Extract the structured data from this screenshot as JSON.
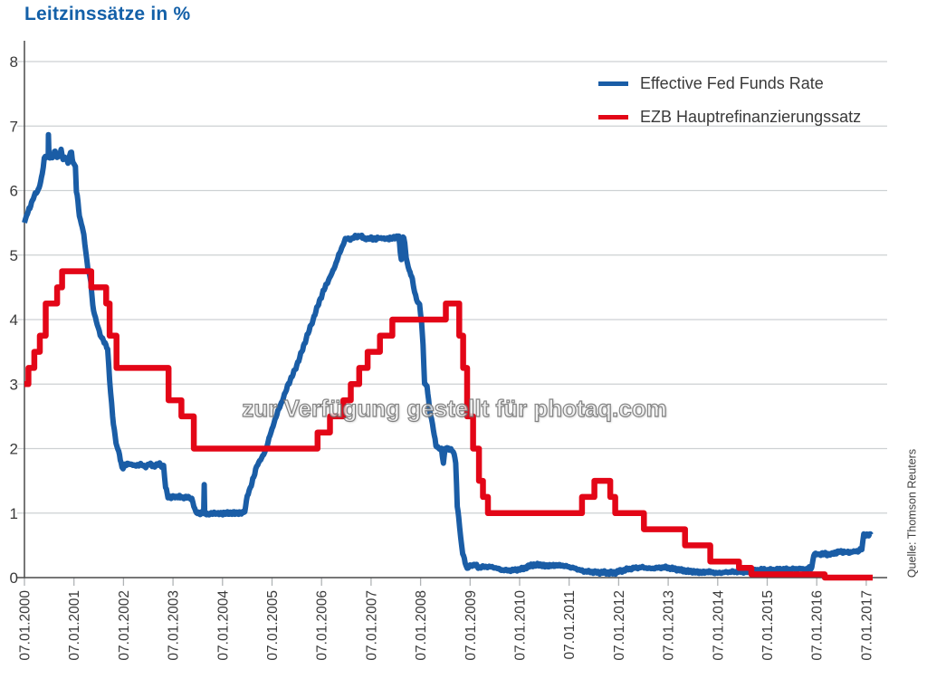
{
  "header": {
    "title": "Leitzinssätze in %"
  },
  "watermark": {
    "text": "zur Verfügung gestellt für photaq.com"
  },
  "source": {
    "text": "Quelle: Thomson Reuters"
  },
  "colors": {
    "title": "#1360a8",
    "fed_line": "#1a5da6",
    "ezb_line": "#e30617",
    "axis_text": "#3a3a3a",
    "grid": "#cdd1d3",
    "axis_line": "#4a4a4a",
    "tick": "#b0b4b6"
  },
  "chart_data": {
    "type": "line",
    "title": "Leitzinssätze in %",
    "xlabel": "",
    "ylabel": "",
    "xlim": [
      2000.02,
      2017.15
    ],
    "ylim": [
      0,
      8.4
    ],
    "grid": "horizontal",
    "legend_position": "top-right",
    "y_ticks": [
      0,
      1,
      2,
      3,
      4,
      5,
      6,
      7,
      8
    ],
    "x_tick_labels": [
      "07.01.2000",
      "07.01.2001",
      "07.01.2002",
      "07.01.2003",
      "07.01.2004",
      "07.01.2005",
      "07.01.2006",
      "07.01.2007",
      "07.01.2008",
      "07.01.2009",
      "07.01.2010",
      "07.01.2011",
      "07.01.2012",
      "07.01.2013",
      "07.01.2014",
      "07.01.2015",
      "07.01.2016",
      "07.01.2017"
    ],
    "series": [
      {
        "name": "Effective Fed Funds Rate",
        "color": "#1a5da6",
        "style": "noisy-line",
        "noise_amplitude": 0.028,
        "points": [
          [
            2000.02,
            5.5
          ],
          [
            2000.08,
            5.65
          ],
          [
            2000.13,
            5.73
          ],
          [
            2000.18,
            5.85
          ],
          [
            2000.24,
            5.95
          ],
          [
            2000.3,
            6.0
          ],
          [
            2000.38,
            6.25
          ],
          [
            2000.42,
            6.5
          ],
          [
            2000.48,
            6.53
          ],
          [
            2000.5,
            6.54
          ],
          [
            2000.505,
            6.87
          ],
          [
            2000.515,
            6.55
          ],
          [
            2000.55,
            6.5
          ],
          [
            2000.6,
            6.53
          ],
          [
            2000.64,
            6.62
          ],
          [
            2000.68,
            6.5
          ],
          [
            2000.73,
            6.55
          ],
          [
            2000.76,
            6.62
          ],
          [
            2000.8,
            6.5
          ],
          [
            2000.85,
            6.52
          ],
          [
            2000.9,
            6.42
          ],
          [
            2000.93,
            6.55
          ],
          [
            2000.97,
            6.6
          ],
          [
            2001.0,
            6.42
          ],
          [
            2001.05,
            6.38
          ],
          [
            2001.07,
            5.98
          ],
          [
            2001.1,
            5.85
          ],
          [
            2001.13,
            5.6
          ],
          [
            2001.17,
            5.49
          ],
          [
            2001.22,
            5.31
          ],
          [
            2001.3,
            4.8
          ],
          [
            2001.36,
            4.6
          ],
          [
            2001.4,
            4.21
          ],
          [
            2001.47,
            3.97
          ],
          [
            2001.55,
            3.77
          ],
          [
            2001.63,
            3.65
          ],
          [
            2001.7,
            3.55
          ],
          [
            2001.74,
            3.07
          ],
          [
            2001.8,
            2.49
          ],
          [
            2001.87,
            2.09
          ],
          [
            2001.94,
            1.9
          ],
          [
            2001.99,
            1.7
          ],
          [
            2002.05,
            1.74
          ],
          [
            2002.15,
            1.77
          ],
          [
            2002.25,
            1.73
          ],
          [
            2002.35,
            1.76
          ],
          [
            2002.45,
            1.72
          ],
          [
            2002.55,
            1.76
          ],
          [
            2002.65,
            1.73
          ],
          [
            2002.75,
            1.76
          ],
          [
            2002.83,
            1.72
          ],
          [
            2002.87,
            1.4
          ],
          [
            2002.92,
            1.26
          ],
          [
            2003.0,
            1.24
          ],
          [
            2003.1,
            1.26
          ],
          [
            2003.2,
            1.24
          ],
          [
            2003.3,
            1.25
          ],
          [
            2003.4,
            1.22
          ],
          [
            2003.48,
            1.01
          ],
          [
            2003.55,
            1.0
          ],
          [
            2003.64,
            1.01
          ],
          [
            2003.65,
            1.44
          ],
          [
            2003.66,
            1.0
          ],
          [
            2003.75,
            0.98
          ],
          [
            2003.85,
            1.0
          ],
          [
            2003.95,
            0.99
          ],
          [
            2004.1,
            1.0
          ],
          [
            2004.25,
            1.0
          ],
          [
            2004.4,
            1.0
          ],
          [
            2004.47,
            1.03
          ],
          [
            2004.52,
            1.26
          ],
          [
            2004.6,
            1.43
          ],
          [
            2004.63,
            1.52
          ],
          [
            2004.73,
            1.76
          ],
          [
            2004.87,
            1.93
          ],
          [
            2004.9,
            2.0
          ],
          [
            2004.96,
            2.16
          ],
          [
            2005.0,
            2.25
          ],
          [
            2005.1,
            2.5
          ],
          [
            2005.23,
            2.75
          ],
          [
            2005.35,
            3.0
          ],
          [
            2005.5,
            3.25
          ],
          [
            2005.62,
            3.5
          ],
          [
            2005.73,
            3.75
          ],
          [
            2005.85,
            4.0
          ],
          [
            2005.96,
            4.25
          ],
          [
            2006.09,
            4.5
          ],
          [
            2006.25,
            4.75
          ],
          [
            2006.37,
            5.0
          ],
          [
            2006.5,
            5.25
          ],
          [
            2006.6,
            5.25
          ],
          [
            2006.7,
            5.28
          ],
          [
            2006.8,
            5.3
          ],
          [
            2006.9,
            5.25
          ],
          [
            2007.0,
            5.26
          ],
          [
            2007.1,
            5.25
          ],
          [
            2007.2,
            5.27
          ],
          [
            2007.3,
            5.25
          ],
          [
            2007.4,
            5.26
          ],
          [
            2007.5,
            5.27
          ],
          [
            2007.58,
            5.3
          ],
          [
            2007.61,
            5.02
          ],
          [
            2007.63,
            4.95
          ],
          [
            2007.65,
            5.25
          ],
          [
            2007.68,
            5.28
          ],
          [
            2007.7,
            5.2
          ],
          [
            2007.73,
            4.94
          ],
          [
            2007.79,
            4.76
          ],
          [
            2007.84,
            4.68
          ],
          [
            2007.88,
            4.5
          ],
          [
            2007.94,
            4.3
          ],
          [
            2008.0,
            4.24
          ],
          [
            2008.04,
            3.94
          ],
          [
            2008.07,
            3.6
          ],
          [
            2008.1,
            3.0
          ],
          [
            2008.15,
            2.98
          ],
          [
            2008.2,
            2.61
          ],
          [
            2008.28,
            2.3
          ],
          [
            2008.33,
            2.05
          ],
          [
            2008.38,
            2.0
          ],
          [
            2008.44,
            2.0
          ],
          [
            2008.48,
            1.78
          ],
          [
            2008.52,
            2.0
          ],
          [
            2008.6,
            2.0
          ],
          [
            2008.68,
            1.95
          ],
          [
            2008.73,
            1.8
          ],
          [
            2008.76,
            1.1
          ],
          [
            2008.79,
            0.95
          ],
          [
            2008.83,
            0.6
          ],
          [
            2008.87,
            0.38
          ],
          [
            2008.92,
            0.25
          ],
          [
            2008.96,
            0.12
          ],
          [
            2009.0,
            0.18
          ],
          [
            2009.1,
            0.2
          ],
          [
            2009.2,
            0.16
          ],
          [
            2009.35,
            0.17
          ],
          [
            2009.5,
            0.16
          ],
          [
            2009.65,
            0.12
          ],
          [
            2009.8,
            0.11
          ],
          [
            2009.95,
            0.12
          ],
          [
            2010.1,
            0.14
          ],
          [
            2010.25,
            0.19
          ],
          [
            2010.4,
            0.2
          ],
          [
            2010.55,
            0.18
          ],
          [
            2010.7,
            0.19
          ],
          [
            2010.85,
            0.19
          ],
          [
            2011.0,
            0.17
          ],
          [
            2011.15,
            0.14
          ],
          [
            2011.3,
            0.1
          ],
          [
            2011.45,
            0.09
          ],
          [
            2011.6,
            0.08
          ],
          [
            2011.75,
            0.08
          ],
          [
            2011.9,
            0.07
          ],
          [
            2012.05,
            0.1
          ],
          [
            2012.2,
            0.13
          ],
          [
            2012.35,
            0.15
          ],
          [
            2012.5,
            0.16
          ],
          [
            2012.65,
            0.14
          ],
          [
            2012.8,
            0.15
          ],
          [
            2012.95,
            0.16
          ],
          [
            2013.1,
            0.14
          ],
          [
            2013.25,
            0.12
          ],
          [
            2013.4,
            0.1
          ],
          [
            2013.55,
            0.09
          ],
          [
            2013.7,
            0.08
          ],
          [
            2013.85,
            0.09
          ],
          [
            2014.0,
            0.07
          ],
          [
            2014.15,
            0.08
          ],
          [
            2014.3,
            0.09
          ],
          [
            2014.45,
            0.09
          ],
          [
            2014.6,
            0.09
          ],
          [
            2014.75,
            0.1
          ],
          [
            2014.9,
            0.12
          ],
          [
            2015.05,
            0.11
          ],
          [
            2015.2,
            0.12
          ],
          [
            2015.35,
            0.13
          ],
          [
            2015.5,
            0.13
          ],
          [
            2015.65,
            0.14
          ],
          [
            2015.8,
            0.13
          ],
          [
            2015.92,
            0.15
          ],
          [
            2015.96,
            0.36
          ],
          [
            2016.05,
            0.36
          ],
          [
            2016.15,
            0.37
          ],
          [
            2016.25,
            0.36
          ],
          [
            2016.35,
            0.37
          ],
          [
            2016.45,
            0.4
          ],
          [
            2016.55,
            0.4
          ],
          [
            2016.65,
            0.39
          ],
          [
            2016.75,
            0.4
          ],
          [
            2016.85,
            0.41
          ],
          [
            2016.93,
            0.45
          ],
          [
            2016.97,
            0.66
          ],
          [
            2017.05,
            0.66
          ],
          [
            2017.12,
            0.66
          ]
        ]
      },
      {
        "name": "EZB Hauptrefinanzierungssatz",
        "color": "#e30617",
        "style": "step",
        "points": [
          [
            2000.02,
            3.0
          ],
          [
            2000.1,
            3.25
          ],
          [
            2000.22,
            3.5
          ],
          [
            2000.33,
            3.75
          ],
          [
            2000.45,
            4.25
          ],
          [
            2000.68,
            4.5
          ],
          [
            2000.78,
            4.75
          ],
          [
            2001.37,
            4.5
          ],
          [
            2001.67,
            4.25
          ],
          [
            2001.74,
            3.75
          ],
          [
            2001.88,
            3.25
          ],
          [
            2002.93,
            2.75
          ],
          [
            2003.19,
            2.5
          ],
          [
            2003.44,
            2.0
          ],
          [
            2005.94,
            2.25
          ],
          [
            2006.19,
            2.5
          ],
          [
            2006.46,
            2.75
          ],
          [
            2006.61,
            3.0
          ],
          [
            2006.78,
            3.25
          ],
          [
            2006.95,
            3.5
          ],
          [
            2007.2,
            3.75
          ],
          [
            2007.45,
            4.0
          ],
          [
            2008.53,
            4.25
          ],
          [
            2008.8,
            3.75
          ],
          [
            2008.88,
            3.25
          ],
          [
            2008.96,
            2.5
          ],
          [
            2009.08,
            2.0
          ],
          [
            2009.2,
            1.5
          ],
          [
            2009.28,
            1.25
          ],
          [
            2009.38,
            1.0
          ],
          [
            2011.28,
            1.25
          ],
          [
            2011.53,
            1.5
          ],
          [
            2011.85,
            1.25
          ],
          [
            2011.95,
            1.0
          ],
          [
            2012.53,
            0.75
          ],
          [
            2013.36,
            0.5
          ],
          [
            2013.87,
            0.25
          ],
          [
            2014.45,
            0.15
          ],
          [
            2014.7,
            0.05
          ],
          [
            2016.18,
            0.0
          ],
          [
            2017.12,
            0.0
          ]
        ]
      }
    ]
  }
}
